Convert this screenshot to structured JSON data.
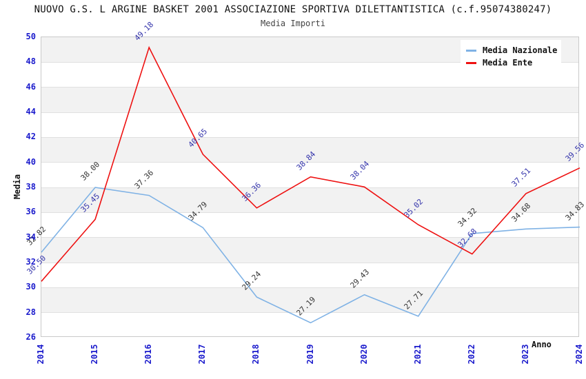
{
  "header": {
    "title": "NUOVO G.S. L ARGINE BASKET 2001 ASSOCIAZIONE SPORTIVA DILETTANTISTICA (c.f.95074380247)",
    "subtitle": "Media Importi"
  },
  "axes": {
    "y_label": "Media",
    "x_label": "Anno",
    "y_ticks": [
      "50",
      "48",
      "46",
      "44",
      "42",
      "40",
      "38",
      "36",
      "34",
      "32",
      "30",
      "28",
      "26"
    ],
    "x_ticks": [
      "2014",
      "2015",
      "2016",
      "2017",
      "2018",
      "2019",
      "2020",
      "2021",
      "2022",
      "2023",
      "2024"
    ]
  },
  "legend": {
    "position": "top-right",
    "items": [
      {
        "label": "Media Nazionale",
        "color": "#7fb2e5"
      },
      {
        "label": "Media Ente",
        "color": "#ee1111"
      }
    ]
  },
  "chart_data": {
    "type": "line",
    "title": "NUOVO G.S. L ARGINE BASKET 2001 ASSOCIAZIONE SPORTIVA DILETTANTISTICA (c.f.95074380247)",
    "subtitle": "Media Importi",
    "xlabel": "Anno",
    "ylabel": "Media",
    "x": [
      2014,
      2015,
      2016,
      2017,
      2018,
      2019,
      2020,
      2021,
      2022,
      2023,
      2024
    ],
    "series": [
      {
        "name": "Media Nazionale",
        "color": "#7fb2e5",
        "label_color": "#333333",
        "values": [
          32.82,
          38.0,
          37.36,
          34.79,
          29.24,
          27.19,
          29.43,
          27.71,
          34.32,
          34.68,
          34.83
        ]
      },
      {
        "name": "Media Ente",
        "color": "#ee1111",
        "label_color": "#3434ab",
        "values": [
          30.5,
          35.45,
          49.18,
          40.65,
          36.36,
          38.84,
          38.04,
          35.02,
          32.68,
          37.51,
          39.56
        ]
      }
    ],
    "ylim": [
      26,
      50
    ],
    "y_tick_step": 2,
    "grid": "horizontal alternating bands, light gray gridlines, no vertical gridlines",
    "legend_position": "top-right",
    "value_labels": "each point labeled with value, rotated 45deg"
  },
  "colors": {
    "background": "#ffffff",
    "tick_label": "#1a1acc",
    "band_gray": "#f2f2f2",
    "band_white": "#ffffff",
    "grid_line": "#e0e0e0",
    "plot_border": "#c9c9c9"
  }
}
